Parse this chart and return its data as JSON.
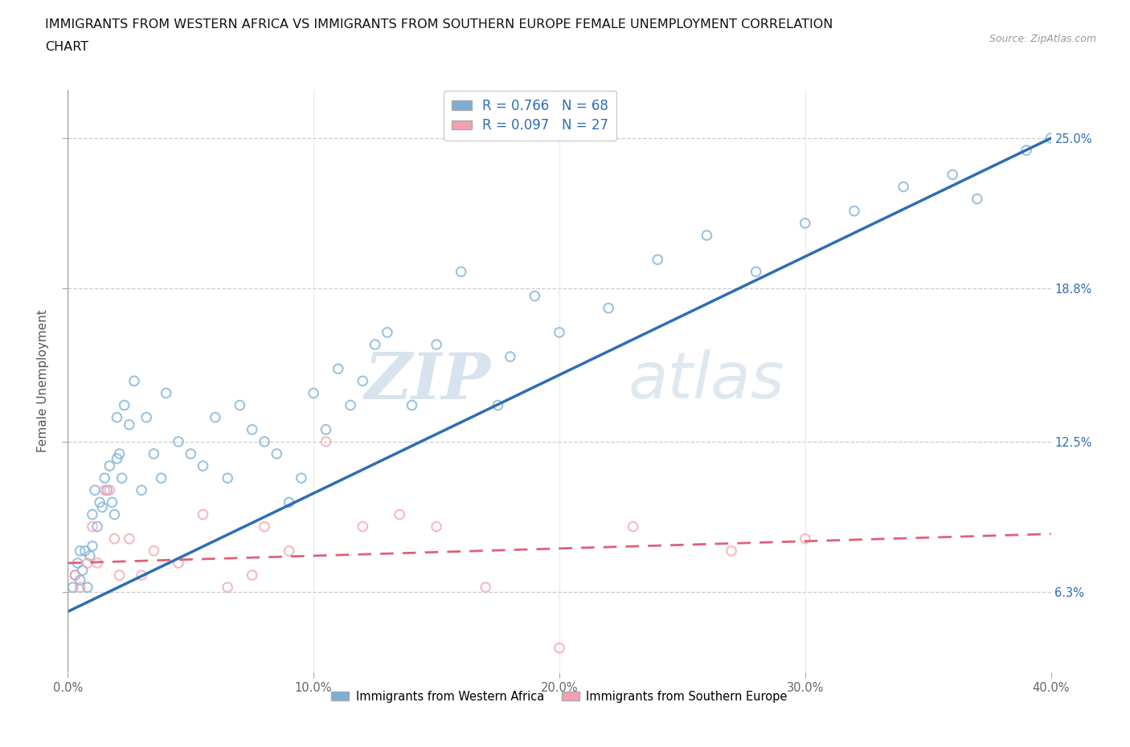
{
  "title_line1": "IMMIGRANTS FROM WESTERN AFRICA VS IMMIGRANTS FROM SOUTHERN EUROPE FEMALE UNEMPLOYMENT CORRELATION",
  "title_line2": "CHART",
  "source": "Source: ZipAtlas.com",
  "ylabel": "Female Unemployment",
  "x_min": 0.0,
  "x_max": 40.0,
  "y_min": 3.0,
  "y_max": 27.0,
  "y_ticks": [
    6.3,
    12.5,
    18.8,
    25.0
  ],
  "x_ticks": [
    0.0,
    10.0,
    20.0,
    30.0,
    40.0
  ],
  "blue_color": "#7BAFD4",
  "pink_color": "#F4A0B0",
  "trend_blue": "#2E6DB4",
  "trend_pink": "#E0607A",
  "R_blue": 0.766,
  "N_blue": 68,
  "R_pink": 0.097,
  "N_pink": 27,
  "watermark_zip": "ZIP",
  "watermark_atlas": "atlas",
  "legend_label_blue": "Immigrants from Western Africa",
  "legend_label_pink": "Immigrants from Southern Europe",
  "blue_x": [
    0.2,
    0.3,
    0.4,
    0.5,
    0.5,
    0.6,
    0.7,
    0.8,
    0.9,
    1.0,
    1.0,
    1.1,
    1.2,
    1.3,
    1.4,
    1.5,
    1.6,
    1.7,
    1.8,
    1.9,
    2.0,
    2.0,
    2.1,
    2.2,
    2.3,
    2.5,
    2.7,
    3.0,
    3.2,
    3.5,
    3.8,
    4.0,
    4.5,
    5.0,
    5.5,
    6.0,
    6.5,
    7.0,
    7.5,
    8.0,
    8.5,
    9.0,
    9.5,
    10.0,
    10.5,
    11.0,
    11.5,
    12.0,
    12.5,
    13.0,
    14.0,
    15.0,
    16.0,
    17.5,
    18.0,
    19.0,
    20.0,
    22.0,
    24.0,
    26.0,
    28.0,
    30.0,
    32.0,
    34.0,
    36.0,
    37.0,
    39.0,
    40.0
  ],
  "blue_y": [
    6.5,
    7.0,
    7.5,
    8.0,
    6.8,
    7.2,
    8.0,
    6.5,
    7.8,
    9.5,
    8.2,
    10.5,
    9.0,
    10.0,
    9.8,
    11.0,
    10.5,
    11.5,
    10.0,
    9.5,
    11.8,
    13.5,
    12.0,
    11.0,
    14.0,
    13.2,
    15.0,
    10.5,
    13.5,
    12.0,
    11.0,
    14.5,
    12.5,
    12.0,
    11.5,
    13.5,
    11.0,
    14.0,
    13.0,
    12.5,
    12.0,
    10.0,
    11.0,
    14.5,
    13.0,
    15.5,
    14.0,
    15.0,
    16.5,
    17.0,
    14.0,
    16.5,
    19.5,
    14.0,
    16.0,
    18.5,
    17.0,
    18.0,
    20.0,
    21.0,
    19.5,
    21.5,
    22.0,
    23.0,
    23.5,
    22.5,
    24.5,
    25.0
  ],
  "pink_x": [
    0.3,
    0.5,
    0.8,
    1.0,
    1.2,
    1.5,
    1.7,
    1.9,
    2.1,
    2.5,
    3.0,
    3.5,
    4.5,
    5.5,
    6.5,
    7.5,
    8.0,
    9.0,
    10.5,
    12.0,
    13.5,
    15.0,
    17.0,
    20.0,
    23.0,
    27.0,
    30.0
  ],
  "pink_y": [
    7.0,
    6.5,
    7.5,
    9.0,
    7.5,
    10.5,
    10.5,
    8.5,
    7.0,
    8.5,
    7.0,
    8.0,
    7.5,
    9.5,
    6.5,
    7.0,
    9.0,
    8.0,
    12.5,
    9.0,
    9.5,
    9.0,
    6.5,
    4.0,
    9.0,
    8.0,
    8.5
  ],
  "blue_trend_x0": 0.0,
  "blue_trend_y0": 5.5,
  "blue_trend_x1": 40.0,
  "blue_trend_y1": 25.0,
  "pink_trend_x0": 0.0,
  "pink_trend_y0": 7.5,
  "pink_trend_x1": 40.0,
  "pink_trend_y1": 8.7
}
